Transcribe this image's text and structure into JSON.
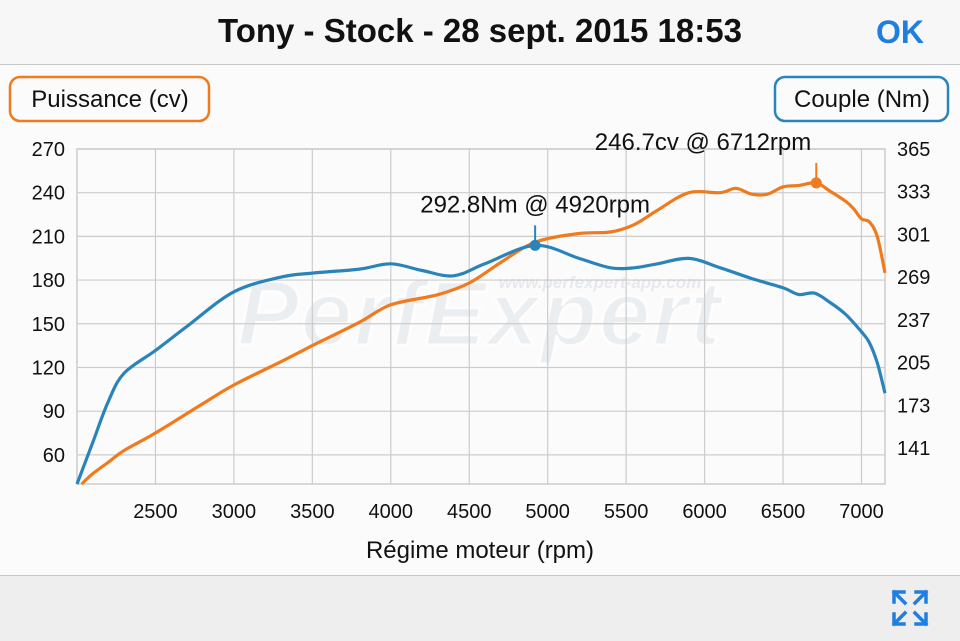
{
  "header": {
    "title": "Tony - Stock - 28 sept. 2015 18:53",
    "ok_label": "OK"
  },
  "watermark": {
    "url": "www.perfexpert-app.com",
    "logo_text": "PerfExpert"
  },
  "bottombar": {
    "expand_icon": "expand-arrows-icon"
  },
  "colors": {
    "power": "#f07a1e",
    "torque": "#2a84b9",
    "grid": "#cccccc"
  },
  "chart_data": {
    "type": "line",
    "xlabel": "Régime moteur (rpm)",
    "ylabel_left": "Puissance (cv)",
    "ylabel_right": "Couple (Nm)",
    "xlim": [
      2000,
      7150
    ],
    "ylim_left": [
      40,
      270
    ],
    "ylim_right": [
      114,
      365
    ],
    "x_ticks": [
      2500,
      3000,
      3500,
      4000,
      4500,
      5000,
      5500,
      6000,
      6500,
      7000
    ],
    "y_ticks_left": [
      60,
      90,
      120,
      150,
      180,
      210,
      240,
      270
    ],
    "y_ticks_right": [
      141,
      173,
      205,
      237,
      269,
      301,
      333,
      365
    ],
    "grid": true,
    "series": [
      {
        "name": "Puissance (cv)",
        "axis": "left",
        "x": [
          2030,
          2100,
          2200,
          2300,
          2500,
          2800,
          3000,
          3300,
          3500,
          3800,
          4000,
          4300,
          4500,
          4700,
          4920,
          5200,
          5400,
          5550,
          5700,
          5900,
          6100,
          6200,
          6300,
          6400,
          6500,
          6600,
          6712,
          6800,
          6900,
          6950,
          7000,
          7050,
          7100,
          7150
        ],
        "values": [
          40,
          47,
          55,
          63,
          75,
          95,
          108,
          124,
          135,
          151,
          163,
          170,
          178,
          192,
          206,
          212,
          213,
          218,
          228,
          240,
          240,
          243,
          239,
          239,
          244,
          245,
          246.7,
          241,
          234,
          229,
          222,
          220,
          210,
          185
        ]
      },
      {
        "name": "Couple (Nm)",
        "axis": "right",
        "x": [
          2000,
          2100,
          2200,
          2300,
          2500,
          2700,
          3000,
          3300,
          3500,
          3800,
          4000,
          4200,
          4400,
          4600,
          4920,
          5200,
          5400,
          5550,
          5700,
          5900,
          6100,
          6300,
          6500,
          6600,
          6700,
          6800,
          6900,
          7000,
          7050,
          7100,
          7150
        ],
        "values": [
          114,
          145,
          176,
          197,
          214,
          232,
          258,
          269,
          272,
          275,
          279,
          274,
          270,
          279,
          292.8,
          283,
          276,
          276,
          279,
          283,
          276,
          268,
          261,
          256,
          257,
          250,
          241,
          228,
          220,
          205,
          182
        ]
      }
    ],
    "annotations": [
      {
        "series": "Puissance (cv)",
        "x": 6712,
        "y": 246.7,
        "label": "246.7cv @ 6712rpm"
      },
      {
        "series": "Couple (Nm)",
        "x": 4920,
        "y": 292.8,
        "label": "292.8Nm @ 4920rpm"
      }
    ]
  }
}
